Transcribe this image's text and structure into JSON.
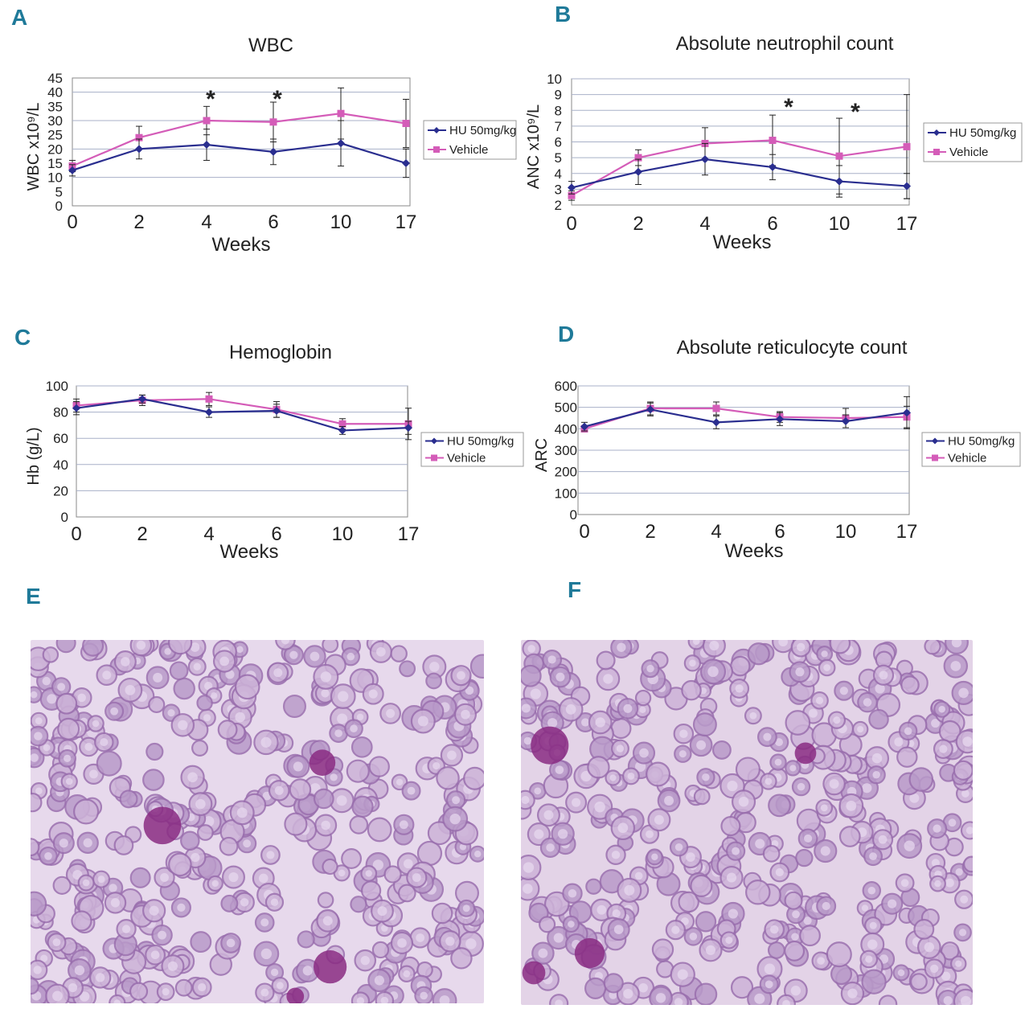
{
  "panels": {
    "A": "A",
    "B": "B",
    "C": "C",
    "D": "D",
    "E": "E",
    "F": "F"
  },
  "colors": {
    "hu": "#2a2e8f",
    "vehicle": "#d45cb8",
    "grid": "#a8b0c8",
    "axis": "#888888"
  },
  "chart_data": [
    {
      "type": "line",
      "title": "WBC",
      "xlabel": "Weeks",
      "ylabel": "WBC x10⁹/L",
      "categories": [
        "0",
        "2",
        "4",
        "6",
        "10",
        "17"
      ],
      "ylim": [
        0,
        45
      ],
      "yticks": [
        0,
        5,
        10,
        15,
        20,
        25,
        30,
        35,
        40,
        45
      ],
      "grid_step": 10,
      "series": [
        {
          "name": "HU 50mg/kg",
          "values": [
            12.5,
            20,
            21.5,
            19,
            22,
            15
          ],
          "err": [
            2,
            3.5,
            5.5,
            4.5,
            8,
            5
          ]
        },
        {
          "name": "Vehicle",
          "values": [
            14,
            24,
            30,
            29.5,
            32.5,
            29
          ],
          "err": [
            2,
            4,
            5,
            7,
            9,
            8.5
          ]
        }
      ],
      "annotations": [
        {
          "text": "*",
          "x": "4",
          "y": 36
        },
        {
          "text": "*",
          "x": "6",
          "y": 36
        }
      ],
      "legend": "right"
    },
    {
      "type": "line",
      "title": "Absolute neutrophil count",
      "xlabel": "Weeks",
      "ylabel": "ANC x10⁹/L",
      "categories": [
        "0",
        "2",
        "4",
        "6",
        "10",
        "17"
      ],
      "ylim": [
        2,
        10
      ],
      "yticks": [
        2,
        3,
        4,
        5,
        6,
        7,
        8,
        9,
        10
      ],
      "grid_step": 1,
      "series": [
        {
          "name": "HU 50mg/kg",
          "values": [
            3.1,
            4.1,
            4.9,
            4.4,
            3.5,
            3.2
          ],
          "err": [
            0.4,
            0.8,
            1.0,
            0.8,
            1.0,
            0.8
          ]
        },
        {
          "name": "Vehicle",
          "values": [
            2.6,
            5.0,
            5.9,
            6.1,
            5.1,
            5.7
          ],
          "err": [
            0.3,
            0.5,
            1.0,
            1.6,
            2.4,
            3.3
          ]
        }
      ],
      "annotations": [
        {
          "text": "*",
          "x": "6",
          "y": 7.9
        },
        {
          "text": "*",
          "x": "10",
          "y": 7.6
        }
      ],
      "legend": "right"
    },
    {
      "type": "line",
      "title": "Hemoglobin",
      "xlabel": "Weeks",
      "ylabel": "Hb (g/L)",
      "categories": [
        "0",
        "2",
        "4",
        "6",
        "10",
        "17"
      ],
      "ylim": [
        0,
        100
      ],
      "yticks": [
        0,
        20,
        40,
        60,
        80,
        100
      ],
      "grid_step": 20,
      "series": [
        {
          "name": "HU 50mg/kg",
          "values": [
            83,
            90,
            80,
            81,
            66,
            68
          ],
          "err": [
            5,
            3,
            4,
            5,
            3,
            5
          ]
        },
        {
          "name": "Vehicle",
          "values": [
            85,
            89,
            90,
            82,
            71,
            71
          ],
          "err": [
            5,
            4,
            5,
            6,
            4,
            12
          ]
        }
      ],
      "annotations": [],
      "legend": "right"
    },
    {
      "type": "line",
      "title": "Absolute reticulocyte count",
      "xlabel": "Weeks",
      "ylabel": "ARC",
      "categories": [
        "0",
        "2",
        "4",
        "6",
        "10",
        "17"
      ],
      "ylim": [
        0,
        600
      ],
      "yticks": [
        0,
        100,
        200,
        300,
        400,
        500,
        600
      ],
      "grid_step": 100,
      "series": [
        {
          "name": "HU 50mg/kg",
          "values": [
            410,
            490,
            430,
            445,
            435,
            475
          ],
          "err": [
            20,
            30,
            30,
            30,
            30,
            75
          ]
        },
        {
          "name": "Vehicle",
          "values": [
            400,
            495,
            495,
            455,
            450,
            455
          ],
          "err": [
            15,
            30,
            30,
            25,
            45,
            50
          ]
        }
      ],
      "annotations": [],
      "legend": "right"
    }
  ],
  "micrographs": [
    {
      "id": "E",
      "tint": "#e7d9ec"
    },
    {
      "id": "F",
      "tint": "#e3d3e7"
    }
  ]
}
